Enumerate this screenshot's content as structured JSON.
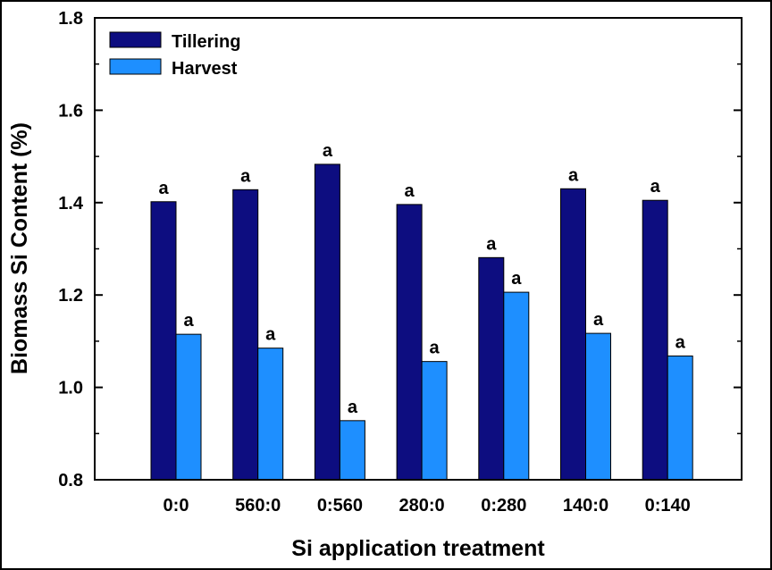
{
  "chart_data": {
    "type": "bar",
    "title": "",
    "xlabel": "Si application treatment",
    "ylabel": "Biomass Si Content (%)",
    "categories": [
      "0:0",
      "560:0",
      "0:560",
      "280:0",
      "0:280",
      "140:0",
      "0:140"
    ],
    "ylim": [
      0.8,
      1.8
    ],
    "yticks": [
      0.8,
      1.0,
      1.2,
      1.4,
      1.6,
      1.8
    ],
    "ytick_labels": [
      "0.8",
      "1.0",
      "1.2",
      "1.4",
      "1.6",
      "1.8"
    ],
    "grid": false,
    "legend_position": "top-left",
    "series": [
      {
        "name": "Tillering",
        "color": "#0d0d80",
        "values": [
          1.402,
          1.428,
          1.483,
          1.396,
          1.281,
          1.43,
          1.405
        ],
        "labels": [
          "a",
          "a",
          "a",
          "a",
          "a",
          "a",
          "a"
        ]
      },
      {
        "name": "Harvest",
        "color": "#1e8fff",
        "values": [
          1.115,
          1.085,
          0.928,
          1.056,
          1.206,
          1.117,
          1.068
        ],
        "labels": [
          "a",
          "a",
          "a",
          "a",
          "a",
          "a",
          "a"
        ]
      }
    ]
  }
}
